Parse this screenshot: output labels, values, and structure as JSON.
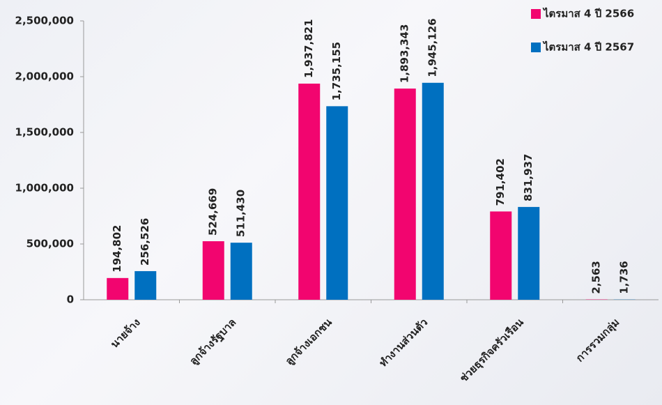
{
  "chart_data": {
    "type": "bar",
    "categories": [
      "นายจ้าง",
      "ลูกจ้างรัฐบาล",
      "ลูกจ้างเอกชน",
      "ทำงานส่วนตัว",
      "ช่วยธุรกิจครัวเรือน",
      "การรวมกลุ่ม"
    ],
    "series": [
      {
        "name": "ไตรมาส 4 ปี 2566",
        "color": "#f2056f",
        "values": [
          194802,
          524669,
          1937821,
          1893343,
          791402,
          2563
        ],
        "value_labels": [
          "194,802",
          "524,669",
          "1,937,821",
          "1,893,343",
          "791,402",
          "2,563"
        ]
      },
      {
        "name": "ไตรมาส 4 ปี 2567",
        "color": "#0070c0",
        "values": [
          256526,
          511430,
          1735155,
          1945126,
          831937,
          1736
        ],
        "value_labels": [
          "256,526",
          "511,430",
          "1,735,155",
          "1,945,126",
          "831,937",
          "1,736"
        ]
      }
    ],
    "ylim": [
      0,
      2500000
    ],
    "yticks": [
      0,
      {
        "value": 500000,
        "label": "500,000"
      },
      {
        "value": 1000000,
        "label": "1,000,000"
      },
      {
        "value": 1500000,
        "label": "1,500,000"
      },
      {
        "value": 2000000,
        "label": "2,000,000"
      },
      {
        "value": 2500000,
        "label": "2,500,000"
      }
    ],
    "legend": "top-right"
  }
}
